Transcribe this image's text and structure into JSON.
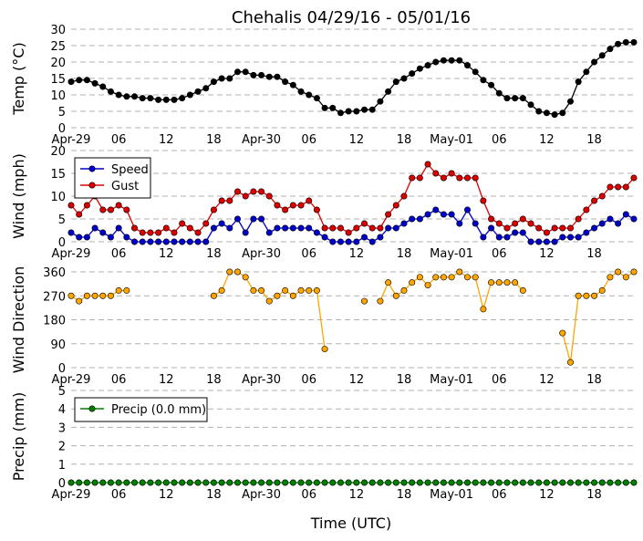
{
  "figure": {
    "title": "Chehalis 04/29/16 - 05/01/16",
    "xlabel": "Time (UTC)"
  },
  "x_ticks": [
    "Apr-29",
    "06",
    "12",
    "18",
    "Apr-30",
    "06",
    "12",
    "18",
    "May-01",
    "06",
    "12",
    "18"
  ],
  "chart_data": [
    {
      "type": "line",
      "panel": "temperature",
      "ylabel": "Temp (°C)",
      "ylim": [
        0,
        30
      ],
      "yticks": [
        0,
        5,
        10,
        15,
        20,
        25,
        30
      ],
      "grid": "horizontal dashed",
      "x_hours_from_start": "hourly, 0 to 71",
      "series": [
        {
          "color": "#000000",
          "values": [
            14,
            14.5,
            14.5,
            13.5,
            12.5,
            11,
            10,
            9.5,
            9.5,
            9,
            9,
            8.5,
            8.5,
            8.5,
            9,
            10,
            11,
            12,
            14,
            15,
            15,
            17,
            17,
            16,
            16,
            15.5,
            15.5,
            14,
            13,
            11,
            10,
            9,
            6,
            6,
            4.5,
            5,
            5,
            5.5,
            5.5,
            8,
            11,
            14,
            15,
            16.5,
            18,
            19,
            20,
            20.5,
            20.5,
            20.5,
            19,
            17,
            14.5,
            13,
            10.5,
            9,
            9,
            9,
            7,
            5,
            4.5,
            4,
            4.5,
            8,
            14,
            17,
            20,
            22,
            24,
            25.5,
            26,
            26
          ]
        }
      ]
    },
    {
      "type": "line",
      "panel": "wind",
      "ylabel": "Wind (mph)",
      "ylim": [
        0,
        20
      ],
      "yticks": [
        0,
        5,
        10,
        15,
        20
      ],
      "grid": "horizontal dashed",
      "legend": "top-left",
      "series": [
        {
          "name": "Speed",
          "color": "#0000cc",
          "values": [
            2,
            1,
            1,
            3,
            2,
            1,
            3,
            1,
            0,
            0,
            0,
            0,
            0,
            0,
            0,
            0,
            0,
            0,
            3,
            4,
            3,
            5,
            2,
            5,
            5,
            2,
            3,
            3,
            3,
            3,
            3,
            2,
            1,
            0,
            0,
            0,
            0,
            1,
            0,
            1,
            3,
            3,
            4,
            5,
            5,
            6,
            7,
            6,
            6,
            4,
            7,
            4,
            1,
            3,
            1,
            1,
            2,
            2,
            0,
            0,
            0,
            0,
            1,
            1,
            1,
            2,
            3,
            4,
            5,
            4,
            6,
            5
          ]
        },
        {
          "name": "Gust",
          "color": "#dd0000",
          "values": [
            8,
            6,
            8,
            10,
            7,
            7,
            8,
            7,
            3,
            2,
            2,
            2,
            3,
            2,
            4,
            3,
            2,
            4,
            7,
            9,
            9,
            11,
            10,
            11,
            11,
            10,
            8,
            7,
            8,
            8,
            9,
            7,
            3,
            3,
            3,
            2,
            3,
            4,
            3,
            3,
            6,
            8,
            10,
            14,
            14,
            17,
            15,
            14,
            15,
            14,
            14,
            14,
            9,
            5,
            4,
            3,
            4,
            5,
            4,
            3,
            2,
            3,
            3,
            3,
            5,
            7,
            9,
            10,
            12,
            12,
            12,
            14
          ]
        }
      ]
    },
    {
      "type": "line",
      "panel": "wind_direction",
      "ylabel": "Wind Direction",
      "ylim": [
        0,
        360
      ],
      "yticks": [
        0,
        90,
        180,
        270,
        360
      ],
      "grid": "horizontal dashed",
      "series": [
        {
          "color": "#ffa500",
          "values": [
            270,
            250,
            270,
            270,
            270,
            270,
            290,
            290,
            null,
            null,
            null,
            null,
            null,
            null,
            null,
            null,
            null,
            null,
            270,
            290,
            360,
            360,
            340,
            290,
            290,
            250,
            270,
            290,
            270,
            290,
            290,
            290,
            70,
            null,
            null,
            null,
            null,
            null,
            null,
            null,
            null,
            null,
            null,
            null,
            null,
            null,
            null,
            null,
            null,
            null,
            null,
            null,
            null,
            null,
            null,
            null,
            null,
            null,
            null,
            null,
            null,
            null,
            null,
            null,
            null,
            null,
            null,
            null,
            null,
            null,
            null,
            null
          ],
          "segments": [
            {
              "start_hour": 37,
              "values": [
                250,
                null,
                250,
                320,
                270,
                290,
                320,
                340,
                310,
                340,
                340,
                340,
                360,
                340,
                340,
                220,
                320,
                320,
                320,
                320,
                290
              ]
            },
            {
              "start_hour": 62,
              "values": [
                130,
                20,
                270,
                270,
                270,
                290,
                340,
                360,
                340,
                360
              ]
            }
          ]
        }
      ]
    },
    {
      "type": "line",
      "panel": "precipitation",
      "ylabel": "Precip (mm)",
      "ylim": [
        0,
        5
      ],
      "yticks": [
        0,
        1,
        2,
        3,
        4,
        5
      ],
      "grid": "horizontal dashed",
      "legend": "top-left",
      "series": [
        {
          "name": "Precip (0.0 mm)",
          "color": "#008000",
          "values": [
            0,
            0,
            0,
            0,
            0,
            0,
            0,
            0,
            0,
            0,
            0,
            0,
            0,
            0,
            0,
            0,
            0,
            0,
            0,
            0,
            0,
            0,
            0,
            0,
            0,
            0,
            0,
            0,
            0,
            0,
            0,
            0,
            0,
            0,
            0,
            0,
            0,
            0,
            0,
            0,
            0,
            0,
            0,
            0,
            0,
            0,
            0,
            0,
            0,
            0,
            0,
            0,
            0,
            0,
            0,
            0,
            0,
            0,
            0,
            0,
            0,
            0,
            0,
            0,
            0,
            0,
            0,
            0,
            0,
            0,
            0,
            0
          ]
        }
      ]
    }
  ]
}
